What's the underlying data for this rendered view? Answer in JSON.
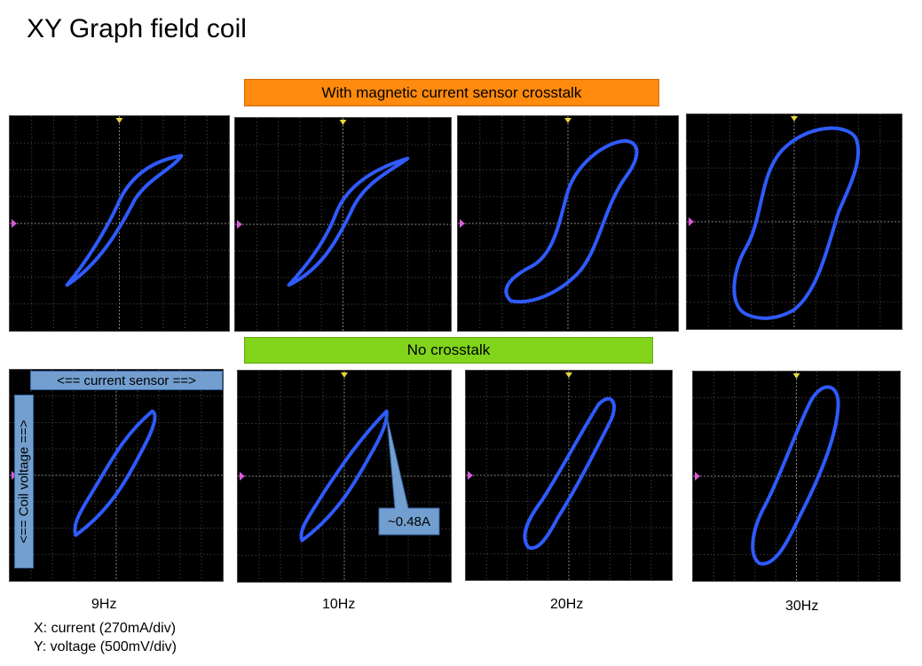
{
  "title": "XY Graph field coil",
  "banners": {
    "top": "With magnetic current sensor crosstalk",
    "bottom": "No crosstalk"
  },
  "frequencies": [
    "9Hz",
    "10Hz",
    "20Hz",
    "30Hz"
  ],
  "axis_notes": {
    "x": "X: current (270mA/div)",
    "y": "Y: voltage (500mV/div)"
  },
  "labels": {
    "current_sensor": "<== current sensor ==>",
    "coil_voltage": "<== Coil voltage ==>",
    "callout": "~0.48A"
  },
  "colors": {
    "trace": "#2f5bff",
    "trigger_marker": "#e8d63a",
    "channel_marker": "#d85bd8",
    "orange_banner": "#ff8a0d",
    "green_banner": "#81d41a",
    "label_box": "#729fcf"
  }
}
